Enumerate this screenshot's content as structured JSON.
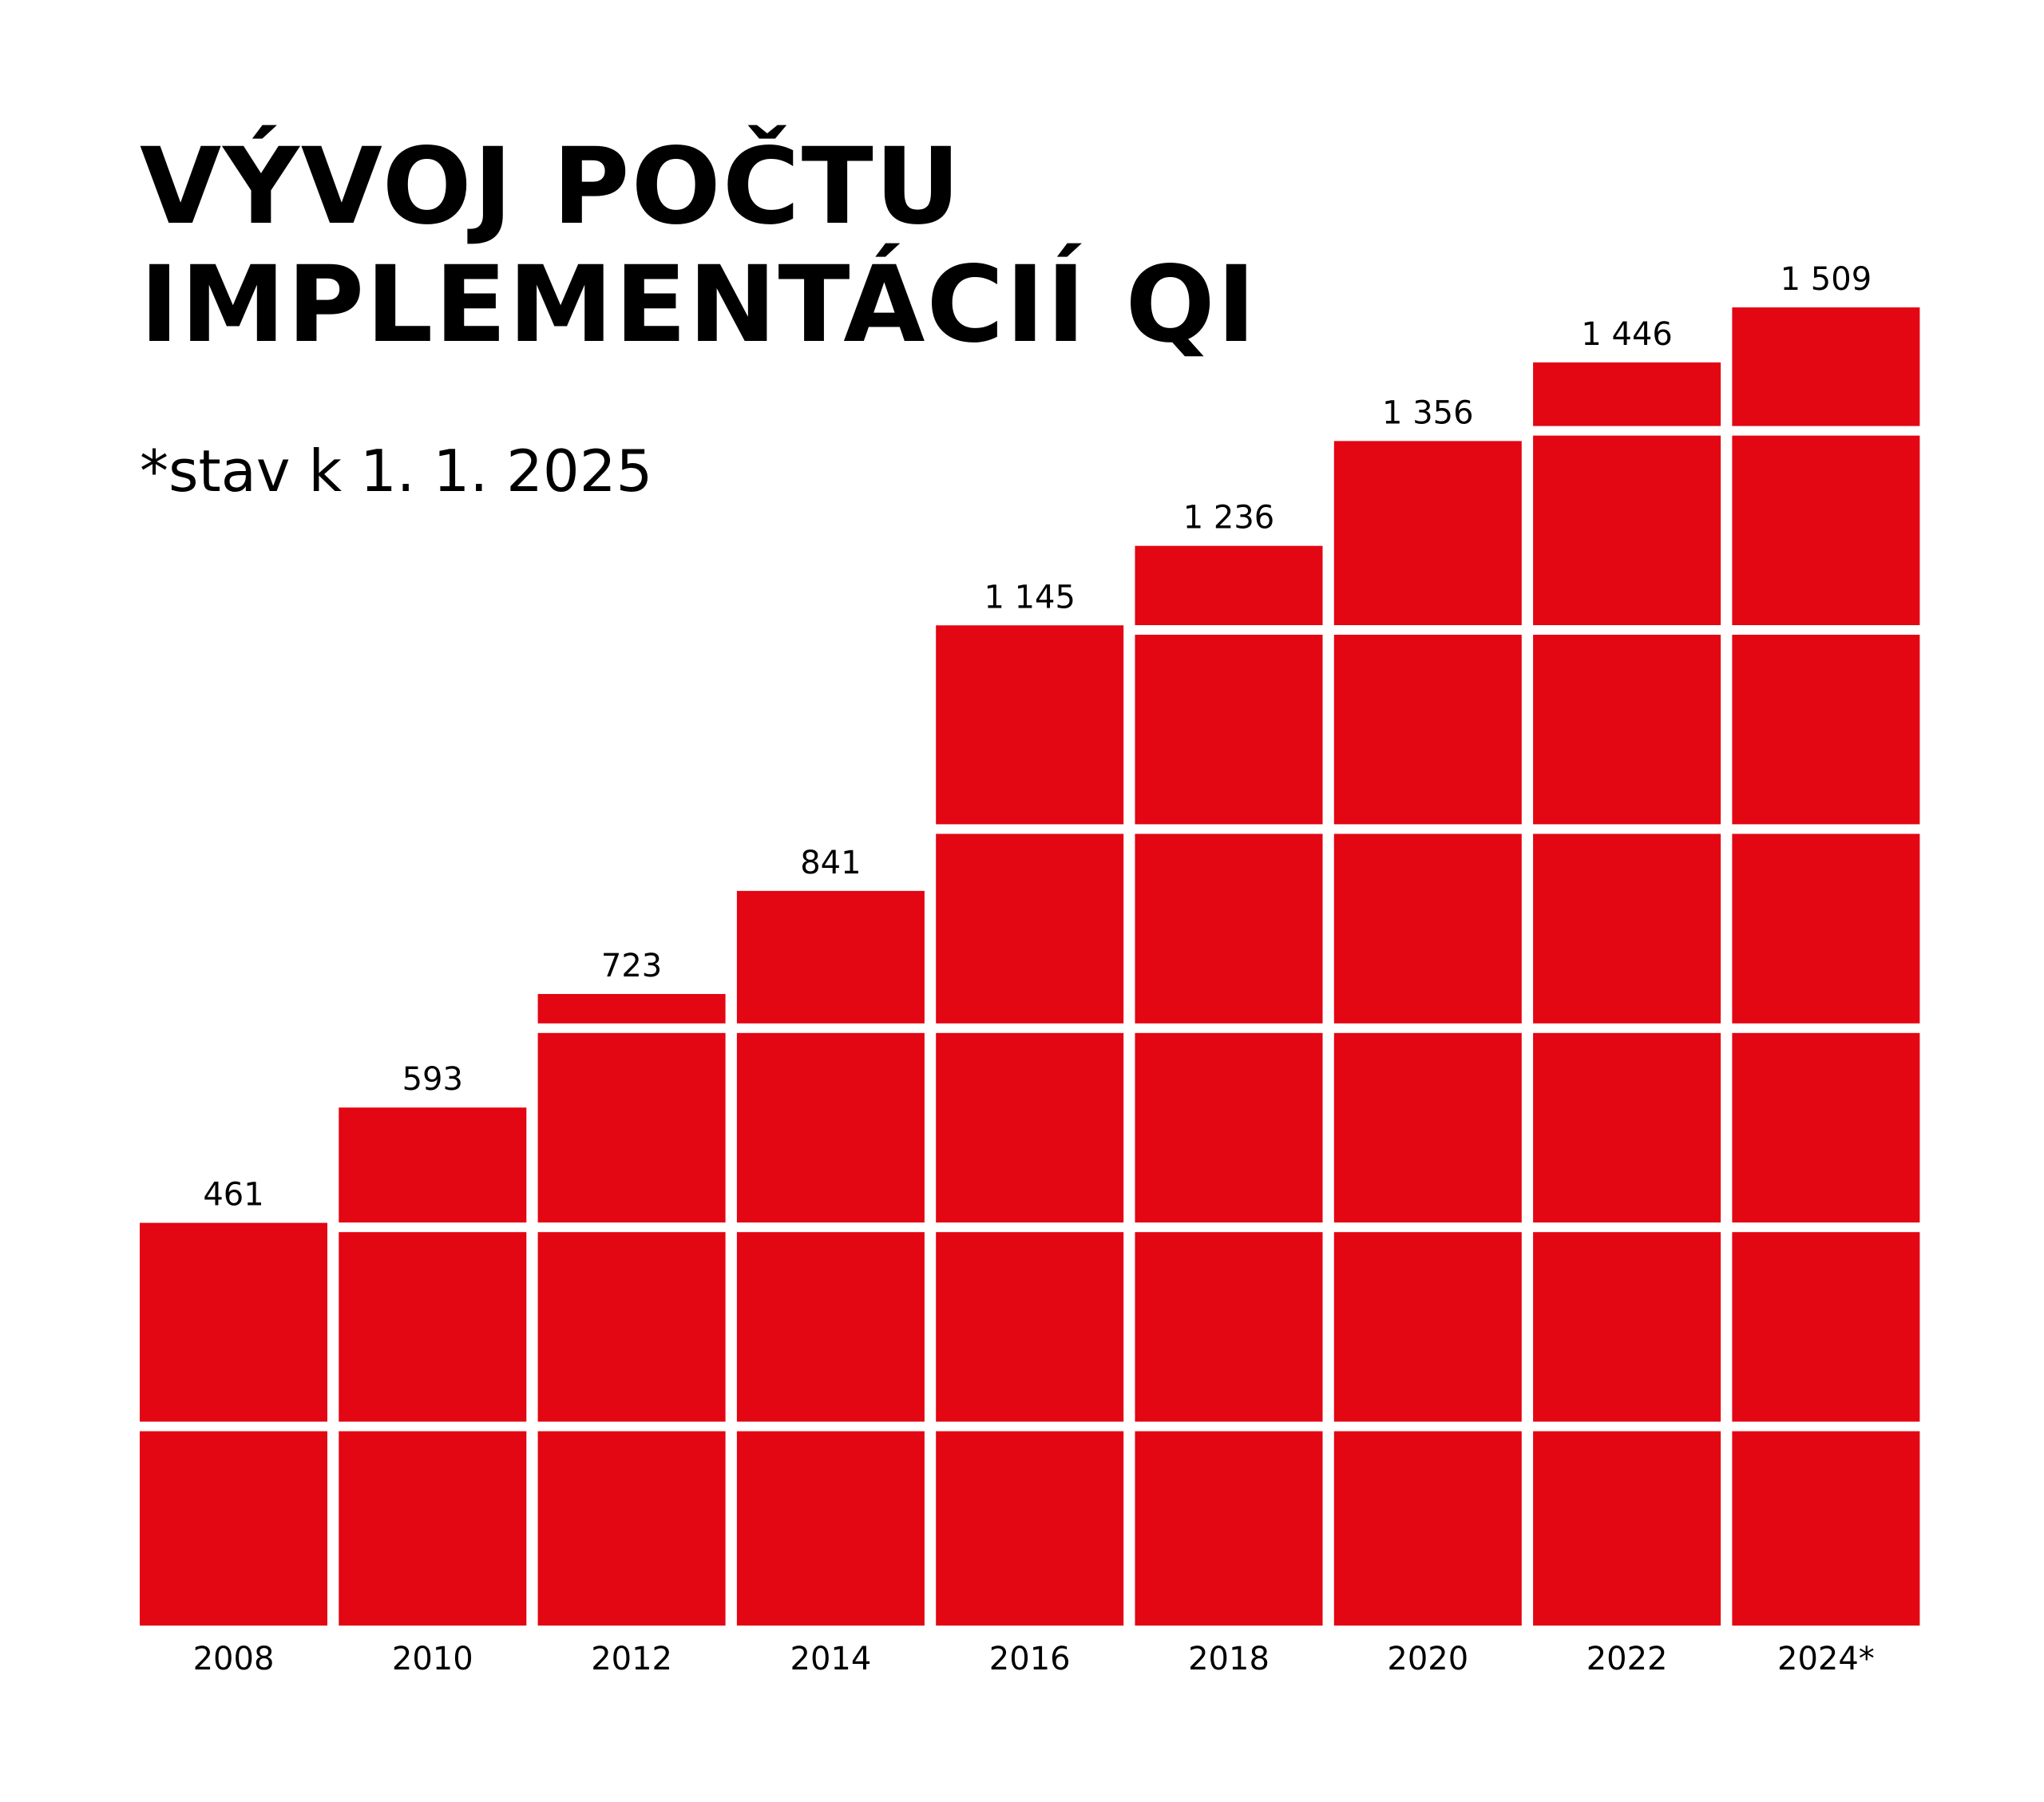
{
  "title_line1": "VÝVOJ POČTU",
  "title_line2": "IMPLEMENTÁCIÍ QI",
  "subtitle": "*stav k 1. 1. 2025",
  "colors": {
    "bar": "#e30613",
    "gap": "#ffffff",
    "text": "#000000"
  },
  "chart_data": {
    "type": "bar",
    "title": "VÝVOJ POČTU IMPLEMENTÁCIÍ QI",
    "subtitle": "*stav k 1. 1. 2025",
    "categories": [
      "2008",
      "2010",
      "2012",
      "2014",
      "2016",
      "2018",
      "2020",
      "2022",
      "2024*"
    ],
    "values": [
      461,
      593,
      723,
      841,
      1145,
      1236,
      1356,
      1446,
      1509
    ],
    "value_labels": [
      "461",
      "593",
      "723",
      "841",
      "1 145",
      "1 236",
      "1 356",
      "1 446",
      "1 509"
    ],
    "ylim": [
      0,
      1509
    ],
    "grid": false
  }
}
